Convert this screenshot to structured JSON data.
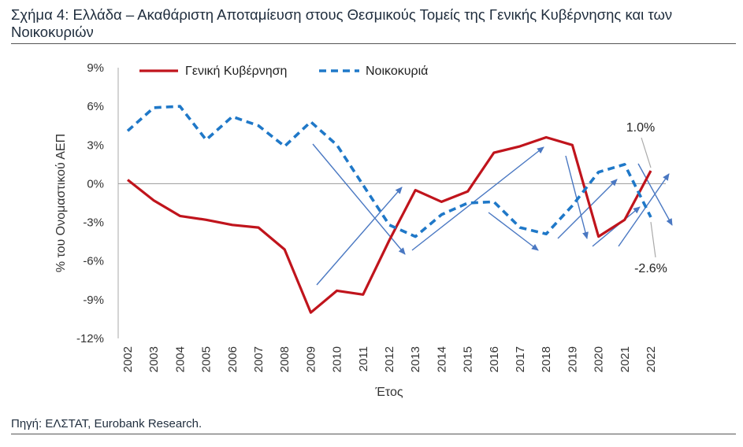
{
  "header": {
    "title": "Σχήμα 4: Ελλάδα – Ακαθάριστη Αποταμίευση στους Θεσμικούς Τομείς της Γενικής Κυβέρνησης και των Νοικοκυριών"
  },
  "footer": {
    "source": "Πηγή: ΕΛΣΤΑΤ, Eurobank Research."
  },
  "colors": {
    "government": "#c0141c",
    "households": "#1f78c8",
    "arrows": "#4a78c2",
    "zero_line": "#999999"
  },
  "chart_data": {
    "type": "line",
    "xlabel": "Έτος",
    "ylabel": "% του Ονομαστικού ΑΕΠ",
    "ylim": [
      -12,
      9
    ],
    "y_ticks": [
      "9%",
      "6%",
      "3%",
      "0%",
      "-3%",
      "-6%",
      "-9%",
      "-12%"
    ],
    "y_tick_values": [
      9,
      6,
      3,
      0,
      -3,
      -6,
      -9,
      -12
    ],
    "categories": [
      "2002",
      "2003",
      "2004",
      "2005",
      "2006",
      "2007",
      "2008",
      "2009",
      "2010",
      "2011",
      "2012",
      "2013",
      "2014",
      "2015",
      "2016",
      "2017",
      "2018",
      "2019",
      "2020",
      "2021",
      "2022"
    ],
    "grid": false,
    "legend_position": "top-left",
    "series": [
      {
        "name": "Γενική Κυβέρνηση",
        "style": "solid",
        "values": [
          0.3,
          -1.3,
          -2.5,
          -2.8,
          -3.2,
          -3.4,
          -5.1,
          -10.0,
          -8.3,
          -8.6,
          -4.4,
          -0.5,
          -1.4,
          -0.6,
          2.4,
          2.9,
          3.6,
          3.0,
          -4.1,
          -2.8,
          1.0
        ]
      },
      {
        "name": "Νοικοκυριά",
        "style": "dashed",
        "values": [
          4.1,
          5.9,
          6.0,
          3.4,
          5.2,
          4.5,
          2.9,
          4.8,
          3.0,
          -0.1,
          -3.2,
          -4.1,
          -2.4,
          -1.5,
          -1.4,
          -3.4,
          -3.9,
          -1.7,
          0.9,
          1.5,
          -2.6
        ]
      }
    ],
    "annotations": [
      {
        "text": "1.0%",
        "year": "2022",
        "value": 1.0
      },
      {
        "text": "-2.6%",
        "year": "2022",
        "value": -2.6
      }
    ]
  }
}
